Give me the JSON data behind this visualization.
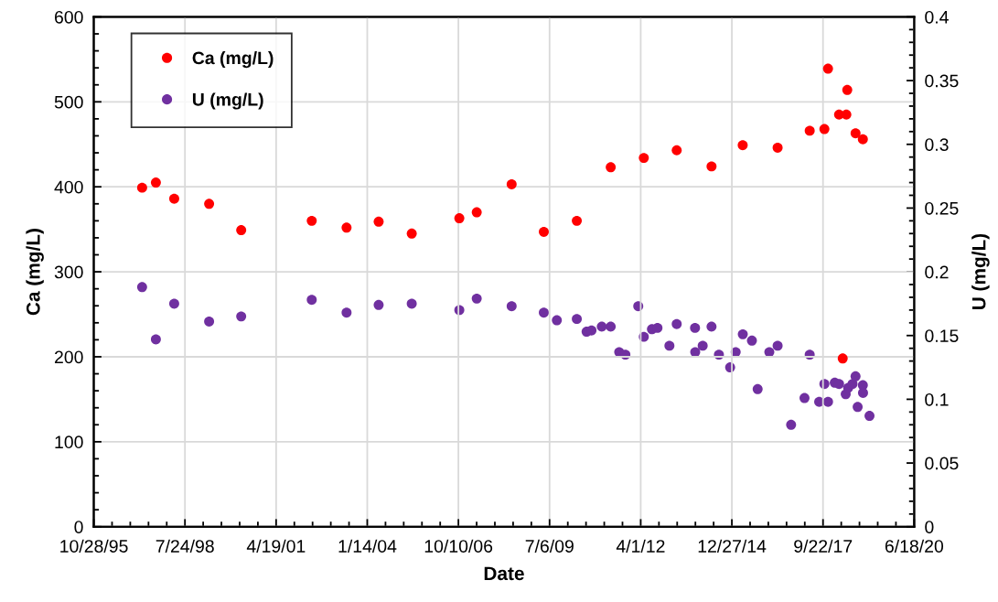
{
  "chart_data": {
    "type": "scatter",
    "xlabel": "Date",
    "ylabel": "Ca (mg/L)",
    "y2label": "U (mg/L)",
    "xlim": [
      "1995-10-28",
      "2020-06-18"
    ],
    "xticks": [
      {
        "value": "1995-10-28",
        "label": "10/28/95"
      },
      {
        "value": "1998-07-24",
        "label": "7/24/98"
      },
      {
        "value": "2001-04-19",
        "label": "4/19/01"
      },
      {
        "value": "2004-01-14",
        "label": "1/14/04"
      },
      {
        "value": "2006-10-10",
        "label": "10/10/06"
      },
      {
        "value": "2009-07-06",
        "label": "7/6/09"
      },
      {
        "value": "2012-04-01",
        "label": "4/1/12"
      },
      {
        "value": "2014-12-27",
        "label": "12/27/14"
      },
      {
        "value": "2017-09-22",
        "label": "9/22/17"
      },
      {
        "value": "2020-06-18",
        "label": "6/18/20"
      }
    ],
    "ylim": [
      0,
      600
    ],
    "yticks": [
      0,
      100,
      200,
      300,
      400,
      500,
      600
    ],
    "y2lim": [
      0,
      0.4
    ],
    "y2ticks": [
      0,
      0.05,
      0.1,
      0.15,
      0.2,
      0.25,
      0.3,
      0.35,
      0.4
    ],
    "grid": true,
    "legend": "top left",
    "marker": "circle",
    "series": [
      {
        "name": "Ca (mg/L)",
        "color": "#ff0000",
        "x": [
          "1997-04-10",
          "1997-09-08",
          "1998-03-28",
          "1999-04-15",
          "2000-04-01",
          "2002-05-15",
          "2003-06-01",
          "2004-05-18",
          "2005-05-16",
          "2006-10-20",
          "2007-04-29",
          "2008-05-16",
          "2009-05-04",
          "2010-05-01",
          "2011-05-08",
          "2012-05-05",
          "2013-05-01",
          "2014-05-18",
          "2015-04-25",
          "2016-05-12",
          "2017-04-29",
          "2017-10-07",
          "2017-11-16",
          "2018-03-17",
          "2018-04-26",
          "2018-06-05",
          "2018-06-15",
          "2018-09-14",
          "2018-12-03"
        ],
        "values": [
          399,
          405,
          386,
          380,
          349,
          360,
          352,
          359,
          345,
          363,
          370,
          403,
          347,
          360,
          423,
          434,
          443,
          424,
          449,
          446,
          466,
          468,
          539,
          485,
          198,
          485,
          514,
          463,
          456
        ]
      },
      {
        "name": "U (mg/L)",
        "color": "#7030a0",
        "axis": "y2",
        "x": [
          "1997-04-10",
          "1997-09-08",
          "1998-03-28",
          "1999-04-15",
          "2000-04-01",
          "2002-05-15",
          "2003-06-01",
          "2004-05-18",
          "2005-05-16",
          "2006-10-20",
          "2007-04-29",
          "2008-05-16",
          "2009-05-04",
          "2009-09-24",
          "2010-05-01",
          "2010-08-16",
          "2010-10-09",
          "2011-01-30",
          "2011-05-08",
          "2011-08-09",
          "2011-10-16",
          "2012-03-05",
          "2012-05-05",
          "2012-08-02",
          "2012-10-02",
          "2013-02-10",
          "2013-05-01",
          "2013-11-18",
          "2013-11-20",
          "2014-02-10",
          "2014-05-18",
          "2014-08-07",
          "2014-12-08",
          "2015-02-07",
          "2015-04-26",
          "2015-08-04",
          "2015-10-06",
          "2016-02-11",
          "2016-05-12",
          "2016-10-07",
          "2017-03-03",
          "2017-04-29",
          "2017-08-11",
          "2017-10-07",
          "2017-11-16",
          "2018-01-29",
          "2018-03-17",
          "2018-05-29",
          "2018-06-25",
          "2018-08-12",
          "2018-09-14",
          "2018-10-07",
          "2018-12-03",
          "2018-12-05",
          "2019-02-14"
        ],
        "values": [
          0.188,
          0.147,
          0.175,
          0.161,
          0.165,
          0.178,
          0.168,
          0.174,
          0.175,
          0.17,
          0.179,
          0.173,
          0.168,
          0.162,
          0.163,
          0.153,
          0.154,
          0.157,
          0.157,
          0.137,
          0.135,
          0.173,
          0.149,
          0.155,
          0.156,
          0.142,
          0.159,
          0.156,
          0.137,
          0.142,
          0.157,
          0.135,
          0.125,
          0.137,
          0.151,
          0.146,
          0.108,
          0.137,
          0.142,
          0.08,
          0.101,
          0.135,
          0.098,
          0.112,
          0.098,
          0.113,
          0.112,
          0.104,
          0.109,
          0.112,
          0.118,
          0.094,
          0.111,
          0.105,
          0.087
        ]
      }
    ]
  }
}
